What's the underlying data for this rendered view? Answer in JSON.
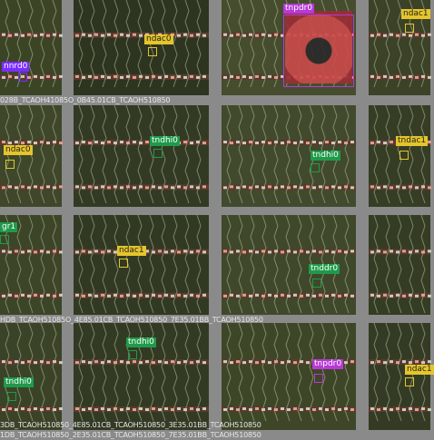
{
  "grid_bg": "#8a8a8a",
  "tiles": [
    {
      "caption": "028B_TCAOH41085O_0B45.01CB_TCAOH510850",
      "tag": "nnrd0",
      "color": "#7b2cff",
      "text": "#ffffff",
      "shade": "#3b4526"
    },
    {
      "caption": "",
      "tag": "ndac0",
      "color": "#e5c52a",
      "text": "#222222",
      "shade": "#2d3420"
    },
    {
      "caption": "",
      "tag": "tnpdr0",
      "color": "#b63ad4",
      "text": "#ffffff",
      "shade": "#454d2e"
    },
    {
      "caption": "",
      "tag": "ndac1",
      "color": "#e5c52a",
      "text": "#222222",
      "shade": "#3b4227"
    },
    {
      "caption": "",
      "tag": "ndac0",
      "color": "#e5c52a",
      "text": "#222222",
      "shade": "#3e4729"
    },
    {
      "caption": "",
      "tag": "tndhi0",
      "color": "#1f9a4a",
      "text": "#ffffff",
      "shade": "#323a24"
    },
    {
      "caption": "",
      "tag": "tndhi0",
      "color": "#1f9a4a",
      "text": "#ffffff",
      "shade": "#414a2c"
    },
    {
      "caption": "",
      "tag": "tndac1",
      "color": "#e5c52a",
      "text": "#222222",
      "shade": "#353d25"
    },
    {
      "caption": "HDB_TCAOH51085O_4E85.01CB_TCAOH510850_7E35.01BB_TCAOH510850",
      "tag": "gr1",
      "color": "#1f9a4a",
      "text": "#ffffff",
      "shade": "#3c4527"
    },
    {
      "caption": "",
      "tag": "ndac1",
      "color": "#e5c52a",
      "text": "#222222",
      "shade": "#313923"
    },
    {
      "caption": "",
      "tag": "tnddr0",
      "color": "#1f9a4a",
      "text": "#ffffff",
      "shade": "#3f482a"
    },
    {
      "caption": "",
      "tag": "",
      "color": "#e5c52a",
      "text": "#222222",
      "shade": "#343c24"
    },
    {
      "caption": "1DB_TCAOH510850_2E35.01CB_TCAOH510850_7E35.01BB_TCAOH510850",
      "tag": "tndhi0",
      "color": "#1f9a4a",
      "text": "#ffffff",
      "shade": "#3a4327"
    },
    {
      "caption": "",
      "tag": "tndhi0",
      "color": "#1f9a4a",
      "text": "#ffffff",
      "shade": "#323a23"
    },
    {
      "caption": "",
      "tag": "tnpdr0",
      "color": "#b63ad4",
      "text": "#ffffff",
      "shade": "#3e4628"
    },
    {
      "caption": "",
      "tag": "ndac1",
      "color": "#e5c52a",
      "text": "#222222",
      "shade": "#343b24"
    }
  ],
  "bottom_caption": "3DB_TCAOH510850_4E85.01CB_TCAOH510850_3E35.01BB_TCAOH510850"
}
